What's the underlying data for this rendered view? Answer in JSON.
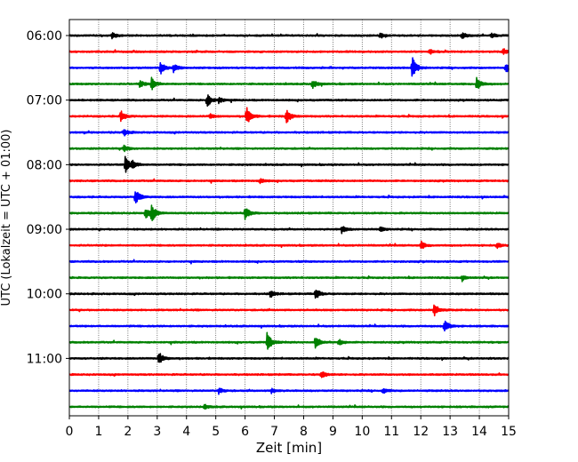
{
  "chart_data": {
    "type": "line",
    "xlabel": "Zeit  [min]",
    "ylabel": "UTC (Lokalzeit = UTC + 01:00)",
    "xlim": [
      0,
      15
    ],
    "xticks": [
      "0",
      "1",
      "2",
      "3",
      "4",
      "5",
      "6",
      "7",
      "8",
      "9",
      "10",
      "11",
      "12",
      "13",
      "14",
      "15"
    ],
    "vertical_grid": true,
    "yticks": [
      {
        "label": "06:00",
        "trace": 0
      },
      {
        "label": "07:00",
        "trace": 4
      },
      {
        "label": "08:00",
        "trace": 8
      },
      {
        "label": "09:00",
        "trace": 12
      },
      {
        "label": "10:00",
        "trace": 16
      },
      {
        "label": "11:00",
        "trace": 20
      }
    ],
    "trace_minutes": 15,
    "color_cycle": [
      "#000000",
      "#ff0000",
      "#0000ff",
      "#008000"
    ],
    "series": [
      {
        "index": 0,
        "color": "#000000",
        "events": [
          {
            "t": 1.45,
            "a": 0.35
          },
          {
            "t": 10.6,
            "a": 0.35
          },
          {
            "t": 13.4,
            "a": 0.45
          },
          {
            "t": 14.4,
            "a": 0.3
          }
        ]
      },
      {
        "index": 1,
        "color": "#ff0000",
        "events": [
          {
            "t": 12.3,
            "a": 0.35
          },
          {
            "t": 14.8,
            "a": 0.45
          }
        ]
      },
      {
        "index": 2,
        "color": "#0000ff",
        "events": [
          {
            "t": 3.1,
            "a": 0.9
          },
          {
            "t": 3.55,
            "a": 0.5
          },
          {
            "t": 11.7,
            "a": 1.5
          },
          {
            "t": 14.9,
            "a": 0.6
          }
        ]
      },
      {
        "index": 3,
        "color": "#008000",
        "events": [
          {
            "t": 2.4,
            "a": 0.45
          },
          {
            "t": 2.8,
            "a": 0.9
          },
          {
            "t": 8.3,
            "a": 0.6
          },
          {
            "t": 13.9,
            "a": 0.9
          }
        ]
      },
      {
        "index": 4,
        "color": "#000000",
        "events": [
          {
            "t": 4.7,
            "a": 0.9
          },
          {
            "t": 5.1,
            "a": 0.4
          }
        ]
      },
      {
        "index": 5,
        "color": "#ff0000",
        "events": [
          {
            "t": 1.75,
            "a": 0.8
          },
          {
            "t": 4.8,
            "a": 0.3
          },
          {
            "t": 6.05,
            "a": 1.2
          },
          {
            "t": 7.4,
            "a": 1.0
          }
        ]
      },
      {
        "index": 6,
        "color": "#0000ff",
        "events": [
          {
            "t": 1.85,
            "a": 0.5
          }
        ]
      },
      {
        "index": 7,
        "color": "#008000",
        "events": [
          {
            "t": 1.85,
            "a": 0.5
          }
        ]
      },
      {
        "index": 8,
        "color": "#000000",
        "events": [
          {
            "t": 1.9,
            "a": 1.1
          },
          {
            "t": 2.15,
            "a": 0.5
          }
        ]
      },
      {
        "index": 9,
        "color": "#ff0000",
        "events": [
          {
            "t": 6.5,
            "a": 0.3
          }
        ]
      },
      {
        "index": 10,
        "color": "#0000ff",
        "events": [
          {
            "t": 2.25,
            "a": 1.0
          }
        ]
      },
      {
        "index": 11,
        "color": "#008000",
        "events": [
          {
            "t": 2.6,
            "a": 0.8
          },
          {
            "t": 2.8,
            "a": 1.1
          },
          {
            "t": 6.0,
            "a": 0.9
          }
        ]
      },
      {
        "index": 12,
        "color": "#000000",
        "events": [
          {
            "t": 9.3,
            "a": 0.5
          },
          {
            "t": 10.6,
            "a": 0.3
          }
        ]
      },
      {
        "index": 13,
        "color": "#ff0000",
        "events": [
          {
            "t": 12.0,
            "a": 0.5
          },
          {
            "t": 14.6,
            "a": 0.3
          }
        ]
      },
      {
        "index": 14,
        "color": "#0000ff",
        "events": []
      },
      {
        "index": 15,
        "color": "#008000",
        "events": [
          {
            "t": 13.4,
            "a": 0.3
          }
        ]
      },
      {
        "index": 16,
        "color": "#000000",
        "events": [
          {
            "t": 6.85,
            "a": 0.5
          },
          {
            "t": 8.4,
            "a": 0.8
          }
        ]
      },
      {
        "index": 17,
        "color": "#ff0000",
        "events": [
          {
            "t": 12.45,
            "a": 0.9
          }
        ]
      },
      {
        "index": 18,
        "color": "#0000ff",
        "events": [
          {
            "t": 12.8,
            "a": 0.9
          }
        ]
      },
      {
        "index": 19,
        "color": "#008000",
        "events": [
          {
            "t": 6.75,
            "a": 1.3
          },
          {
            "t": 8.4,
            "a": 0.9
          },
          {
            "t": 9.2,
            "a": 0.4
          }
        ]
      },
      {
        "index": 20,
        "color": "#000000",
        "events": [
          {
            "t": 3.05,
            "a": 0.9
          }
        ]
      },
      {
        "index": 21,
        "color": "#ff0000",
        "events": [
          {
            "t": 8.6,
            "a": 0.5
          }
        ]
      },
      {
        "index": 22,
        "color": "#0000ff",
        "events": [
          {
            "t": 5.1,
            "a": 0.4
          },
          {
            "t": 6.9,
            "a": 0.3
          },
          {
            "t": 10.7,
            "a": 0.3
          }
        ]
      },
      {
        "index": 23,
        "color": "#008000",
        "events": [
          {
            "t": 4.6,
            "a": 0.3
          }
        ]
      }
    ]
  }
}
